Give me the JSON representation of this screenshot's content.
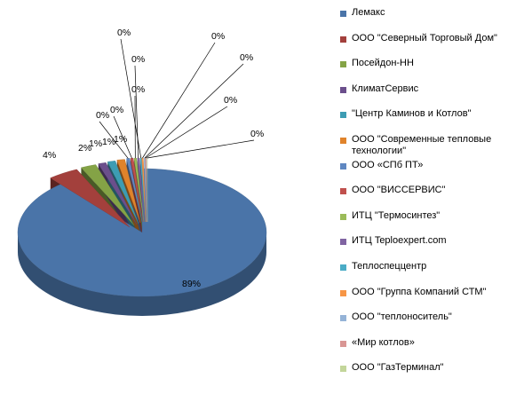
{
  "chart_data": {
    "type": "pie",
    "title": "",
    "legend_position": "right",
    "slices": [
      {
        "name": "Лемакс",
        "value": 89,
        "label": "89%",
        "color": "#4a74a8"
      },
      {
        "name": "ООО \"Северный Торговый Дом\"",
        "value": 4,
        "label": "4%",
        "color": "#a3403c"
      },
      {
        "name": "Посейдон-НН",
        "value": 2,
        "label": "2%",
        "color": "#84a346"
      },
      {
        "name": "КлиматСервис",
        "value": 1,
        "label": "1%",
        "color": "#6b4f8c"
      },
      {
        "name": "\"Центр Каминов и Котлов\"",
        "value": 1,
        "label": "1%",
        "color": "#3d9cb3"
      },
      {
        "name": "ООО \"Современные тепловые технологии\"",
        "value": 1,
        "label": "1%",
        "color": "#e0832b"
      },
      {
        "name": "ООО «СПб ПТ»",
        "value": 0.4,
        "label": "0%",
        "color": "#5f87c1"
      },
      {
        "name": "ООО \"ВИССЕРВИС\"",
        "value": 0.35,
        "label": "0%",
        "color": "#c0504d"
      },
      {
        "name": "ИТЦ \"Термосинтез\"",
        "value": 0.3,
        "label": "0%",
        "color": "#9bbb59"
      },
      {
        "name": "ИТЦ Teploexpert.com",
        "value": 0.25,
        "label": "0%",
        "color": "#8064a2"
      },
      {
        "name": "Теплоспеццентр",
        "value": 0.2,
        "label": "0%",
        "color": "#4bacc6"
      },
      {
        "name": "ООО \"Группа Компаний СТМ\"",
        "value": 0.2,
        "label": "0%",
        "color": "#f79646"
      },
      {
        "name": "ООО \"теплоноситель\"",
        "value": 0.15,
        "label": "0%",
        "color": "#95b3d7"
      },
      {
        "name": "«Мир котлов»",
        "value": 0.1,
        "label": "0%",
        "color": "#d99694"
      },
      {
        "name": "ООО \"ГазТерминал\"",
        "value": 0.05,
        "label": "0%",
        "color": "#c3d69b"
      }
    ]
  }
}
